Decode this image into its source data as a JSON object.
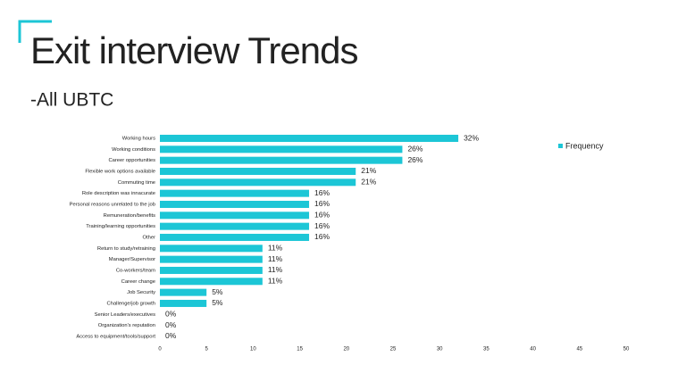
{
  "chart_data": {
    "type": "bar",
    "orientation": "horizontal",
    "title": "Exit interview Trends",
    "subtitle": "-All UBTC",
    "categories": [
      "Working hours",
      "Working conditions",
      "Career opportunities",
      "Flexible work options available",
      "Commuting time",
      "Role description was innacurate",
      "Personal reasons unrelated to the job",
      "Remuneration/benefits",
      "Training/learning opportunities",
      "Other",
      "Return to study/retraining",
      "Manager/Supervisor",
      "Co-workers/team",
      "Career change",
      "Job Security",
      "Challenge/job growth",
      "Senior Leaders/executives",
      "Organization's reputation",
      "Access to equipment/tools/support"
    ],
    "series": [
      {
        "name": "Frequency",
        "color": "#1cc6d6",
        "values": [
          32,
          26,
          26,
          21,
          21,
          16,
          16,
          16,
          16,
          16,
          11,
          11,
          11,
          11,
          5,
          5,
          0,
          0,
          0
        ],
        "value_labels": [
          "32%",
          "26%",
          "26%",
          "21%",
          "21%",
          "16%",
          "16%",
          "16%",
          "16%",
          "16%",
          "11%",
          "11%",
          "11%",
          "11%",
          "5%",
          "5%",
          "0%",
          "0%",
          "0%"
        ]
      }
    ],
    "xlim": [
      0,
      50
    ],
    "xticks": [
      0,
      5,
      10,
      15,
      20,
      25,
      30,
      35,
      40,
      45,
      50
    ],
    "grid": false
  }
}
